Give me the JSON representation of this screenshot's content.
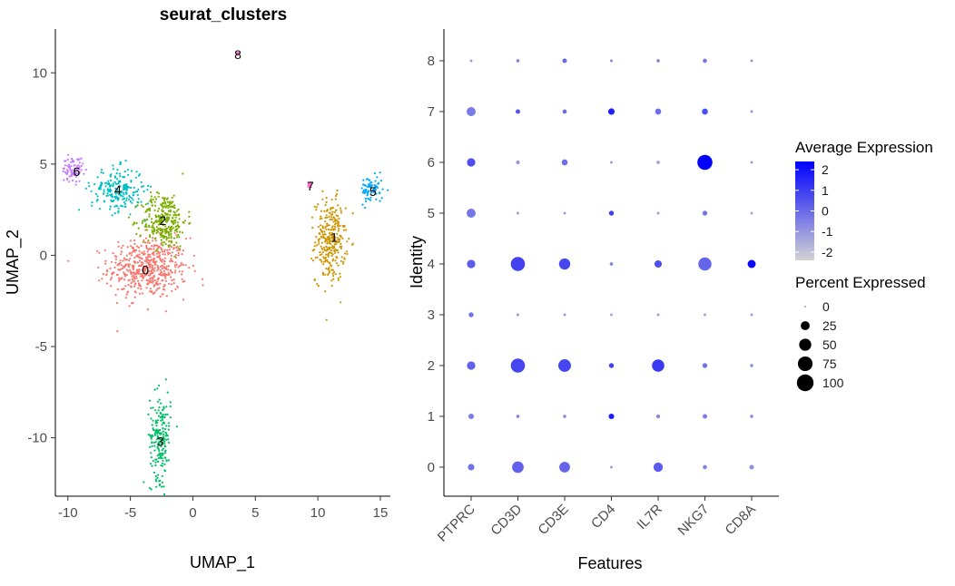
{
  "chart_data": [
    {
      "type": "scatter",
      "title": "seurat_clusters",
      "xlabel": "UMAP_1",
      "ylabel": "UMAP_2",
      "xlim": [
        -11.0,
        15.8
      ],
      "ylim": [
        -13.2,
        12.4
      ],
      "xticks": [
        -10,
        -5,
        0,
        5,
        10,
        15
      ],
      "yticks": [
        -10,
        -5,
        0,
        5,
        10
      ],
      "xtick_labels": [
        "-10",
        "-5",
        "0",
        "5",
        "10",
        "15"
      ],
      "ytick_labels": [
        "-10",
        "-5",
        "0",
        "5",
        "10"
      ],
      "grid": false,
      "clusters": [
        {
          "name": "0",
          "color": "#F8766D",
          "center": [
            -3.6,
            -0.7
          ],
          "spread": [
            2.1,
            1.1
          ],
          "n": 520,
          "label_pos": [
            -3.8,
            -0.8
          ]
        },
        {
          "name": "1",
          "color": "#CD9600",
          "center": [
            11.0,
            0.8
          ],
          "spread": [
            0.8,
            1.5
          ],
          "n": 300,
          "label_pos": [
            11.3,
            1.0
          ]
        },
        {
          "name": "2",
          "color": "#7CAE00",
          "center": [
            -2.3,
            1.9
          ],
          "spread": [
            1.2,
            1.0
          ],
          "n": 300,
          "label_pos": [
            -2.4,
            1.9
          ]
        },
        {
          "name": "3",
          "color": "#00BE67",
          "center": [
            -2.6,
            -9.9
          ],
          "spread": [
            0.55,
            1.6
          ],
          "n": 200,
          "label_pos": [
            -2.6,
            -10.2
          ]
        },
        {
          "name": "4",
          "color": "#00BFC4",
          "center": [
            -6.0,
            3.6
          ],
          "spread": [
            1.4,
            0.8
          ],
          "n": 210,
          "label_pos": [
            -6.0,
            3.6
          ]
        },
        {
          "name": "5",
          "color": "#00A9FF",
          "center": [
            14.3,
            3.6
          ],
          "spread": [
            0.6,
            0.5
          ],
          "n": 80,
          "label_pos": [
            14.4,
            3.5
          ]
        },
        {
          "name": "6",
          "color": "#C77CFF",
          "center": [
            -9.6,
            4.7
          ],
          "spread": [
            0.55,
            0.45
          ],
          "n": 80,
          "label_pos": [
            -9.3,
            4.6
          ]
        },
        {
          "name": "7",
          "color": "#FF61CC",
          "center": [
            9.3,
            3.9
          ],
          "spread": [
            0.12,
            0.15
          ],
          "n": 10,
          "label_pos": [
            9.4,
            3.8
          ]
        },
        {
          "name": "8",
          "color": "#FF61CC",
          "center": [
            3.6,
            11.1
          ],
          "spread": [
            0.1,
            0.08
          ],
          "n": 4,
          "label_pos": [
            3.6,
            11.0
          ]
        }
      ]
    },
    {
      "type": "dotplot",
      "xlabel": "Features",
      "ylabel": "Identity",
      "features": [
        "PTPRC",
        "CD3D",
        "CD3E",
        "CD4",
        "IL7R",
        "NKG7",
        "CD8A"
      ],
      "identities": [
        "0",
        "1",
        "2",
        "3",
        "4",
        "5",
        "6",
        "7",
        "8"
      ],
      "color_low": "#D3D3D3",
      "color_high": "#0000FF",
      "avg_exp_range": [
        -2.4,
        2.4
      ],
      "pct_range": [
        0,
        100
      ],
      "legend": {
        "position": "right",
        "color_title": "Average Expression",
        "color_ticks": [
          2,
          1,
          0,
          -1,
          -2
        ],
        "color_tick_labels": [
          "2",
          "1",
          "0",
          "-1",
          "-2"
        ],
        "size_title": "Percent Expressed",
        "size_ticks": [
          0,
          25,
          50,
          75,
          100
        ],
        "size_tick_labels": [
          "0",
          "25",
          "50",
          "75",
          "100"
        ]
      },
      "avg_exp": [
        [
          -0.2,
          0.2,
          0.1,
          -1.2,
          0.3,
          -0.6,
          -0.8
        ],
        [
          -0.4,
          -0.6,
          -0.8,
          1.8,
          -0.6,
          -0.4,
          -0.8
        ],
        [
          0.2,
          0.8,
          0.8,
          0.9,
          1.1,
          -0.2,
          -0.9
        ],
        [
          -0.2,
          -1.0,
          -1.1,
          -1.3,
          -1.2,
          -1.2,
          -1.2
        ],
        [
          0.3,
          0.9,
          0.8,
          -0.5,
          0.6,
          0.1,
          2.2
        ],
        [
          -0.3,
          -1.1,
          -1.2,
          1.0,
          -1.1,
          -0.3,
          -1.3
        ],
        [
          0.6,
          -1.0,
          -0.1,
          -1.2,
          -1.2,
          2.4,
          -1.1
        ],
        [
          -0.4,
          0.5,
          0.0,
          1.7,
          -0.1,
          0.6,
          -1.0
        ],
        [
          -1.2,
          -0.6,
          0.0,
          -0.7,
          -0.6,
          -0.3,
          -1.0
        ]
      ],
      "pct_exp": [
        [
          12,
          45,
          38,
          1,
          28,
          4,
          5
        ],
        [
          8,
          2,
          2,
          8,
          3,
          5,
          2
        ],
        [
          22,
          70,
          55,
          6,
          52,
          6,
          2
        ],
        [
          6,
          1,
          1,
          1,
          1,
          1,
          1
        ],
        [
          22,
          70,
          42,
          2,
          16,
          60,
          20
        ],
        [
          26,
          1,
          1,
          6,
          1,
          6,
          1
        ],
        [
          22,
          3,
          10,
          1,
          2,
          80,
          1
        ],
        [
          26,
          5,
          4,
          12,
          10,
          10,
          1
        ],
        [
          1,
          2,
          5,
          1,
          2,
          4,
          1
        ]
      ]
    }
  ]
}
